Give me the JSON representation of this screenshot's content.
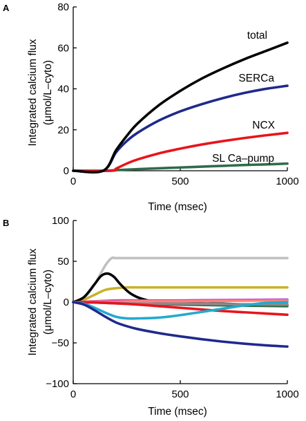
{
  "chart_data": [
    {
      "panel": "A",
      "type": "line",
      "xlabel": "Time (msec)",
      "ylabel": "Integrated calcium flux",
      "ylabel_unit": "(μmol/L–cyto)",
      "xlim": [
        0,
        1000
      ],
      "ylim": [
        0,
        80
      ],
      "xticks": [
        0,
        500,
        1000
      ],
      "yticks": [
        0,
        20,
        40,
        60,
        80
      ],
      "grid": false,
      "series": [
        {
          "name": "SL Ca–pump",
          "color": "#2e6b4a",
          "x": [
            0,
            140,
            200,
            300,
            400,
            500,
            600,
            700,
            800,
            900,
            1000
          ],
          "y": [
            0,
            0,
            0.3,
            0.8,
            1.2,
            1.6,
            2.0,
            2.4,
            2.8,
            3.1,
            3.5
          ]
        },
        {
          "name": "NCX",
          "color": "#e8141c",
          "x": [
            0,
            180,
            200,
            250,
            300,
            400,
            500,
            600,
            700,
            800,
            900,
            1000
          ],
          "y": [
            0,
            0,
            1.0,
            3.5,
            5.5,
            8.5,
            10.8,
            12.8,
            14.5,
            16.0,
            17.3,
            18.5
          ]
        },
        {
          "name": "SERCa",
          "color": "#1f2a8c",
          "x": [
            0,
            140,
            200,
            250,
            300,
            400,
            500,
            600,
            700,
            800,
            900,
            1000
          ],
          "y": [
            0,
            0,
            9,
            14.5,
            18.5,
            24.5,
            29,
            32.5,
            35.5,
            38,
            40,
            41.5
          ]
        },
        {
          "name": "total",
          "color": "#000000",
          "x": [
            0,
            140,
            200,
            250,
            300,
            400,
            500,
            600,
            700,
            800,
            900,
            1000
          ],
          "y": [
            0,
            0,
            10,
            17,
            23,
            32,
            39,
            45,
            50,
            54.5,
            58.5,
            62.5
          ]
        }
      ]
    },
    {
      "panel": "B",
      "type": "line",
      "xlabel": "Time (msec)",
      "ylabel": "Integrated calcium flux",
      "ylabel_unit": "(μmol/L–cyto)",
      "xlim": [
        0,
        1000
      ],
      "ylim": [
        -100,
        100
      ],
      "xticks": [
        0,
        500,
        1000
      ],
      "yticks": [
        -100,
        -50,
        0,
        50,
        100
      ],
      "grid": false,
      "series": [
        {
          "color": "#c0c0c0",
          "x": [
            0,
            50,
            100,
            150,
            180,
            200,
            300,
            500,
            700,
            1000
          ],
          "y": [
            0,
            5,
            22,
            45,
            54,
            54,
            54,
            54,
            54,
            54
          ]
        },
        {
          "color": "#c8b228",
          "x": [
            0,
            50,
            100,
            150,
            200,
            250,
            300,
            500,
            700,
            1000
          ],
          "y": [
            0,
            3,
            9,
            15,
            17,
            18,
            18,
            18,
            18,
            18
          ]
        },
        {
          "color": "#000000",
          "x": [
            0,
            50,
            100,
            130,
            160,
            190,
            220,
            260,
            300,
            350,
            400,
            500,
            600,
            700,
            800,
            900,
            1000
          ],
          "y": [
            0,
            6,
            22,
            32,
            35,
            31,
            22,
            12,
            6,
            2,
            0,
            -1,
            -2,
            -2,
            -3,
            -3,
            -3
          ]
        },
        {
          "color": "#c040c0",
          "x": [
            0,
            100,
            200,
            300,
            500,
            700,
            1000
          ],
          "y": [
            0,
            1,
            2,
            2,
            2,
            2.5,
            3
          ]
        },
        {
          "color": "#ff8080",
          "x": [
            0,
            100,
            200,
            300,
            500,
            700,
            1000
          ],
          "y": [
            0,
            0.5,
            0.5,
            1,
            1,
            1.5,
            2
          ]
        },
        {
          "color": "#2e6b4a",
          "x": [
            0,
            100,
            200,
            300,
            500,
            700,
            1000
          ],
          "y": [
            0,
            -0.5,
            -1.5,
            -2,
            -3,
            -4,
            -5
          ]
        },
        {
          "color": "#8a8a8a",
          "x": [
            0,
            100,
            200,
            300,
            500,
            700,
            1000
          ],
          "y": [
            0,
            -0.5,
            -1,
            -2,
            -2,
            -2.5,
            -3
          ]
        },
        {
          "color": "#e8141c",
          "x": [
            0,
            100,
            200,
            300,
            400,
            500,
            600,
            700,
            800,
            900,
            1000
          ],
          "y": [
            0,
            -0.5,
            -1.5,
            -3,
            -5,
            -7,
            -9,
            -11,
            -12.5,
            -14,
            -15.5
          ]
        },
        {
          "color": "#22aad0",
          "x": [
            0,
            50,
            100,
            150,
            200,
            250,
            300,
            400,
            500,
            600,
            700,
            800,
            900,
            1000
          ],
          "y": [
            0,
            -2,
            -7,
            -13,
            -18,
            -20,
            -20,
            -19,
            -16,
            -12,
            -8,
            -4,
            -1,
            0
          ]
        },
        {
          "color": "#1f2a8c",
          "x": [
            0,
            50,
            100,
            150,
            200,
            250,
            300,
            400,
            500,
            600,
            700,
            800,
            900,
            1000
          ],
          "y": [
            0,
            -3,
            -10,
            -18,
            -25,
            -29.5,
            -33,
            -38,
            -42,
            -45.5,
            -48.5,
            -51,
            -53,
            -54.5
          ]
        }
      ]
    }
  ]
}
